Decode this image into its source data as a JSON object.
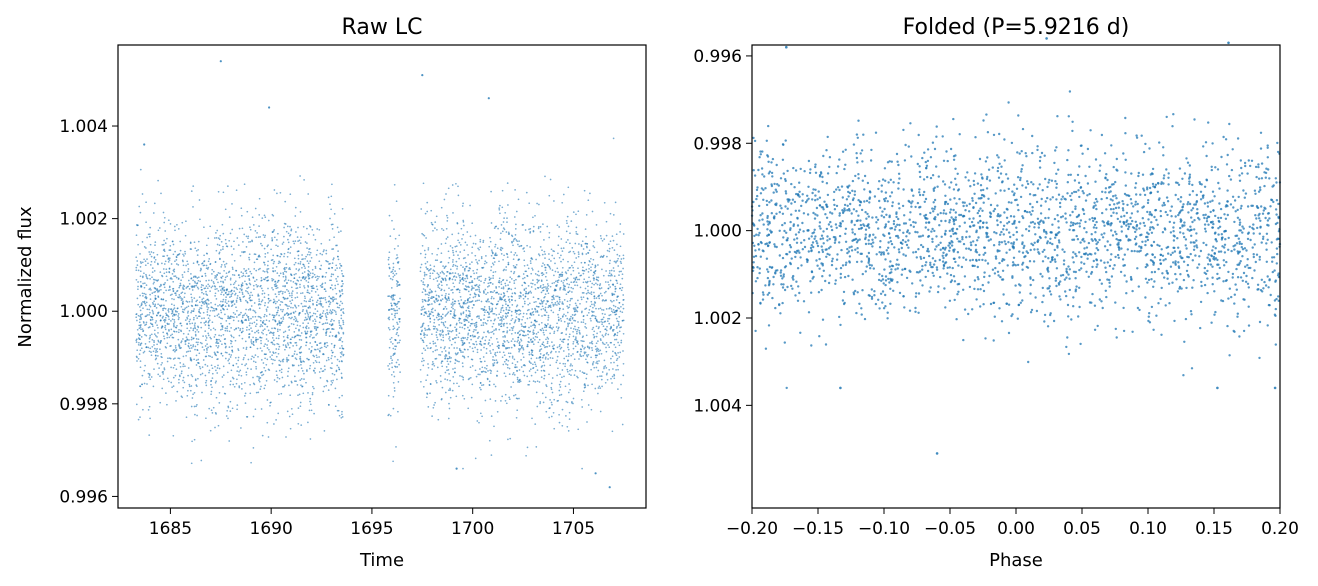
{
  "chart_data": [
    {
      "type": "scatter",
      "title": "Raw LC",
      "xlabel": "Time",
      "ylabel": "Normalized flux",
      "xlim": [
        1682.4,
        1708.6
      ],
      "ylim": [
        0.99575,
        1.00575
      ],
      "y_inverted": false,
      "xticks": [
        1685,
        1690,
        1695,
        1700,
        1705
      ],
      "xtick_labels": [
        "1685",
        "1690",
        "1695",
        "1700",
        "1705"
      ],
      "yticks": [
        0.996,
        0.998,
        1.0,
        1.002,
        1.004
      ],
      "ytick_labels": [
        "0.996",
        "0.998",
        "1.000",
        "1.002",
        "1.004"
      ],
      "grid": false,
      "marker_color": "#1f77b4",
      "time_segments": [
        {
          "start": 1683.3,
          "end": 1693.6
        },
        {
          "start": 1695.8,
          "end": 1696.4
        },
        {
          "start": 1697.4,
          "end": 1707.5
        }
      ],
      "flux_center": 1.0,
      "flux_scatter_sigma": 0.001,
      "notable_points": [
        {
          "x": 1687.5,
          "y": 1.0054
        },
        {
          "x": 1697.5,
          "y": 1.0051
        },
        {
          "x": 1700.8,
          "y": 1.0046
        },
        {
          "x": 1689.9,
          "y": 1.0044
        },
        {
          "x": 1683.7,
          "y": 1.0036
        },
        {
          "x": 1706.8,
          "y": 0.9962
        },
        {
          "x": 1706.1,
          "y": 0.9965
        },
        {
          "x": 1699.2,
          "y": 0.9966
        }
      ]
    },
    {
      "type": "scatter",
      "title": "Folded (P=5.9216 d)",
      "xlabel": "Phase",
      "ylabel": "",
      "xlim": [
        -0.2,
        0.2
      ],
      "ylim": [
        0.99575,
        1.00635
      ],
      "y_inverted": true,
      "xticks": [
        -0.2,
        -0.15,
        -0.1,
        -0.05,
        0.0,
        0.05,
        0.1,
        0.15,
        0.2
      ],
      "xtick_labels": [
        "−0.20",
        "−0.15",
        "−0.10",
        "−0.05",
        "0.00",
        "0.05",
        "0.10",
        "0.15",
        "0.20"
      ],
      "yticks": [
        0.996,
        0.998,
        1.0,
        1.002,
        1.004
      ],
      "ytick_labels": [
        "0.996",
        "0.998",
        "1.000",
        "1.002",
        "1.004"
      ],
      "grid": false,
      "marker_color": "#1f77b4",
      "flux_center": 1.0,
      "flux_scatter_sigma": 0.001,
      "notable_points": [
        {
          "x": -0.0598,
          "y": 1.0051
        },
        {
          "x": -0.133,
          "y": 1.0036
        },
        {
          "x": 0.1526,
          "y": 1.0036
        },
        {
          "x": 0.1963,
          "y": 1.0036
        },
        {
          "x": 0.0232,
          "y": 0.9956
        },
        {
          "x": 0.161,
          "y": 0.9957
        },
        {
          "x": -0.174,
          "y": 0.9958
        }
      ]
    }
  ]
}
